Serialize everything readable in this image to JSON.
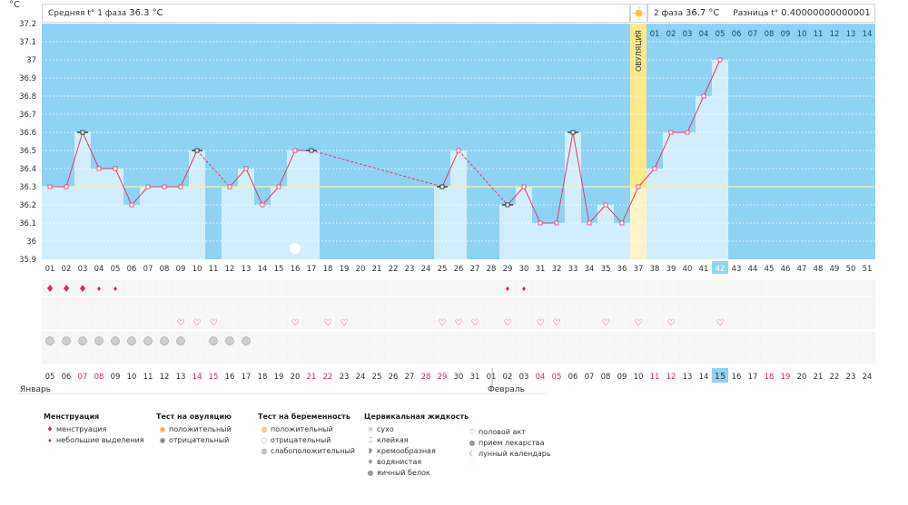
{
  "header": {
    "unit": "°C",
    "phase1_label": "Средняя t° 1 фаза",
    "phase1_value": "36.3 °C",
    "phase2_label": "2 фаза",
    "phase2_value": "36.7 °C",
    "diff_label": "Разница t°",
    "diff_value": "0.40000000000001",
    "ovulation_label": "ОВУЛЯЦИЯ"
  },
  "colors": {
    "bg_sky": "#8fd3f4",
    "bar_fill": "#d2eefc",
    "line": "#e0406a",
    "avg_line": "#f2f2a0",
    "ovulation": "#fbe98c",
    "ovulation_light": "#fdf3c8",
    "accent_red": "#e0245e",
    "highlight": "#8fd3f4"
  },
  "chart_data": {
    "type": "line",
    "ylabel": "°C",
    "ylim": [
      35.9,
      37.2
    ],
    "yticks": [
      35.9,
      36,
      36.1,
      36.2,
      36.3,
      36.4,
      36.5,
      36.6,
      36.7,
      36.8,
      36.9,
      37,
      37.1,
      37.2
    ],
    "ytick_labels": [
      "35.9",
      "36",
      "36.1",
      "36.2",
      "36.3",
      "36.4",
      "36.5",
      "36.6",
      "36.7",
      "36.8",
      "36.9",
      "37",
      "37.1",
      "37.2"
    ],
    "average_phase1": 36.3,
    "ovulation_day": 37,
    "cycle_days": [
      "01",
      "02",
      "03",
      "04",
      "05",
      "06",
      "07",
      "08",
      "09",
      "10",
      "11",
      "12",
      "13",
      "14",
      "15",
      "16",
      "17",
      "18",
      "19",
      "20",
      "21",
      "22",
      "23",
      "24",
      "25",
      "26",
      "27",
      "28",
      "29",
      "30",
      "31",
      "32",
      "33",
      "34",
      "35",
      "36",
      "37",
      "38",
      "39",
      "40",
      "41",
      "42",
      "43",
      "44",
      "45",
      "46",
      "47",
      "48",
      "49",
      "50",
      "51"
    ],
    "current_day_index": 42,
    "top_day_labels": [
      "01",
      "02",
      "03",
      "04",
      "05",
      "06",
      "07",
      "08",
      "09",
      "10",
      "11",
      "12",
      "13",
      "14"
    ],
    "calendar_dates": [
      "05",
      "06",
      "07",
      "08",
      "09",
      "10",
      "11",
      "12",
      "13",
      "14",
      "15",
      "16",
      "17",
      "18",
      "19",
      "20",
      "21",
      "22",
      "23",
      "24",
      "25",
      "26",
      "27",
      "28",
      "29",
      "30",
      "31",
      "01",
      "02",
      "03",
      "04",
      "05",
      "06",
      "07",
      "08",
      "09",
      "10",
      "11",
      "12",
      "13",
      "14",
      "15",
      "16",
      "17",
      "18",
      "19",
      "20",
      "21",
      "22",
      "23",
      "24"
    ],
    "weekend_dates_idx": [
      3,
      4,
      10,
      11,
      17,
      18,
      24,
      25,
      31,
      32,
      38,
      39,
      45,
      46
    ],
    "month_labels": [
      "Январь",
      "Февраль"
    ],
    "month_starts": [
      1,
      28
    ],
    "series": [
      {
        "values": [
          36.3,
          36.3,
          36.6,
          36.4,
          36.4,
          36.2,
          36.3,
          36.3,
          36.3,
          36.5,
          null,
          36.3,
          36.4,
          36.2,
          36.3,
          36.5,
          36.5,
          null,
          null,
          null,
          null,
          null,
          null,
          null,
          36.3,
          36.5,
          null,
          null,
          36.2,
          36.3,
          36.1,
          36.1,
          36.6,
          36.1,
          36.2,
          36.1,
          36.3,
          36.4,
          36.6,
          36.6,
          36.8,
          37.0,
          null,
          null,
          null,
          null,
          null,
          null,
          null,
          null,
          null
        ],
        "marker_special": [
          3,
          10,
          17,
          25,
          29,
          33
        ]
      }
    ],
    "dashed_gaps": [
      [
        10,
        12
      ],
      [
        17,
        25
      ],
      [
        26,
        29
      ]
    ],
    "menstruation": {
      "heavy": [
        1,
        2,
        3
      ],
      "light": [
        4,
        5,
        29,
        30
      ]
    },
    "sex_days": [
      9,
      10,
      11,
      16,
      18,
      19,
      25,
      26,
      27,
      29,
      31,
      32,
      35,
      37,
      39,
      42
    ],
    "medicine_days": [
      1,
      2,
      3,
      4,
      5,
      6,
      7,
      8,
      9,
      11,
      12,
      13
    ],
    "moon_day": 16
  },
  "legend": {
    "menstruation": {
      "title": "Менструация",
      "items": [
        "менструация",
        "небольшие выделения"
      ]
    },
    "ovulation_test": {
      "title": "Тест на овуляцию",
      "items": [
        "положительный",
        "отрицательный"
      ]
    },
    "pregnancy_test": {
      "title": "Тест на беременность",
      "items": [
        "положительный",
        "отрицательный",
        "слабоположительный"
      ]
    },
    "cervical": {
      "title": "Цервикальная жидкость",
      "items": [
        "сухо",
        "клейкая",
        "кремообразная",
        "водянистая",
        "яичный белок"
      ]
    },
    "other": {
      "items": [
        "половой акт",
        "прием лекарства",
        "лунный календарь"
      ]
    }
  }
}
